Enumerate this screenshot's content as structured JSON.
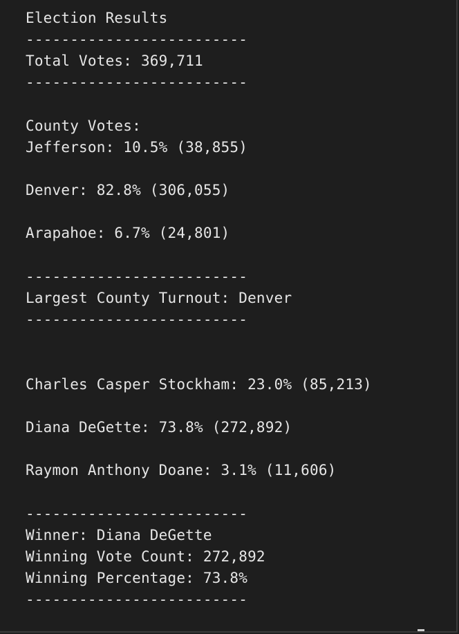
{
  "lines": {
    "title": "Election Results",
    "sep1": "-------------------------",
    "total_votes": "Total Votes: 369,711",
    "sep2": "-------------------------",
    "county_header": "County Votes:",
    "county_jefferson": "Jefferson: 10.5% (38,855)",
    "county_denver": "Denver: 82.8% (306,055)",
    "county_arapahoe": "Arapahoe: 6.7% (24,801)",
    "sep3": "-------------------------",
    "largest_county": "Largest County Turnout: Denver",
    "sep4": "-------------------------",
    "candidate_stockham": "Charles Casper Stockham: 23.0% (85,213)",
    "candidate_degette": "Diana DeGette: 73.8% (272,892)",
    "candidate_doane": "Raymon Anthony Doane: 3.1% (11,606)",
    "sep5": "-------------------------",
    "winner": "Winner: Diana DeGette",
    "winning_count": "Winning Vote Count: 272,892",
    "winning_percentage": "Winning Percentage: 73.8%",
    "sep6": "-------------------------"
  },
  "colors": {
    "background": "#1e1e1e",
    "text": "#e6e6e6"
  }
}
